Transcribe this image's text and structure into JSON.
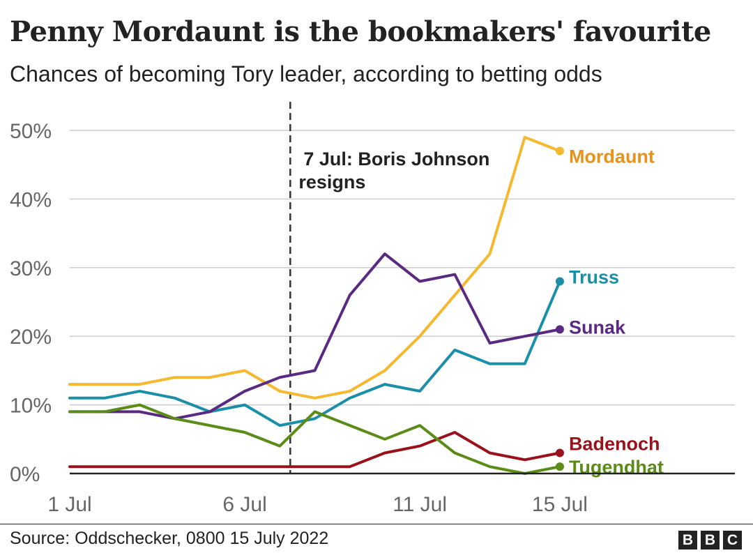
{
  "title": "Penny Mordaunt is the bookmakers' favourite",
  "subtitle": "Chances of becoming Tory leader, according to betting odds",
  "source": "Source: Oddschecker, 0800 15 July 2022",
  "logo": [
    "B",
    "B",
    "C"
  ],
  "chart_data": {
    "type": "line",
    "title": "Penny Mordaunt is the bookmakers' favourite",
    "subtitle": "Chances of becoming Tory leader, according to betting odds",
    "xlabel": "",
    "ylabel": "",
    "x_unit": "day of July 2022",
    "x": [
      1,
      2,
      3,
      4,
      5,
      6,
      7,
      8,
      9,
      10,
      11,
      12,
      13,
      14,
      15
    ],
    "xlim": [
      1,
      20
    ],
    "ylim": [
      0,
      50
    ],
    "x_ticks": [
      {
        "value": 1,
        "label": "1 Jul"
      },
      {
        "value": 6,
        "label": "6 Jul"
      },
      {
        "value": 11,
        "label": "11 Jul"
      },
      {
        "value": 15,
        "label": "15 Jul"
      }
    ],
    "y_ticks": [
      {
        "value": 0,
        "label": "0%"
      },
      {
        "value": 10,
        "label": "10%"
      },
      {
        "value": 20,
        "label": "20%"
      },
      {
        "value": 30,
        "label": "30%"
      },
      {
        "value": 40,
        "label": "40%"
      },
      {
        "value": 50,
        "label": "50%"
      }
    ],
    "grid": true,
    "annotation": {
      "x": 7.3,
      "lines": [
        "7 Jul: Boris Johnson",
        "resigns"
      ]
    },
    "series": [
      {
        "name": "Mordaunt",
        "color": "#f5b82e",
        "label_color": "#e8921c",
        "values": [
          13,
          13,
          13,
          14,
          14,
          15,
          12,
          11,
          12,
          15,
          20,
          26,
          32,
          49,
          47
        ]
      },
      {
        "name": "Truss",
        "color": "#1b8fa8",
        "label_color": "#1b8fa8",
        "values": [
          11,
          11,
          12,
          11,
          9,
          10,
          7,
          8,
          11,
          13,
          12,
          18,
          16,
          16,
          28
        ]
      },
      {
        "name": "Sunak",
        "color": "#5a2a82",
        "label_color": "#5a2a82",
        "values": [
          9,
          9,
          9,
          8,
          9,
          12,
          14,
          15,
          26,
          32,
          28,
          29,
          19,
          20,
          21
        ]
      },
      {
        "name": "Badenoch",
        "color": "#99111b",
        "label_color": "#99111b",
        "values": [
          1,
          1,
          1,
          1,
          1,
          1,
          1,
          1,
          1,
          3,
          4,
          6,
          3,
          2,
          3
        ]
      },
      {
        "name": "Tugendhat",
        "color": "#5a8c17",
        "label_color": "#5a8c17",
        "values": [
          9,
          9,
          10,
          8,
          7,
          6,
          4,
          9,
          7,
          5,
          7,
          3,
          1,
          0,
          1
        ]
      }
    ]
  }
}
